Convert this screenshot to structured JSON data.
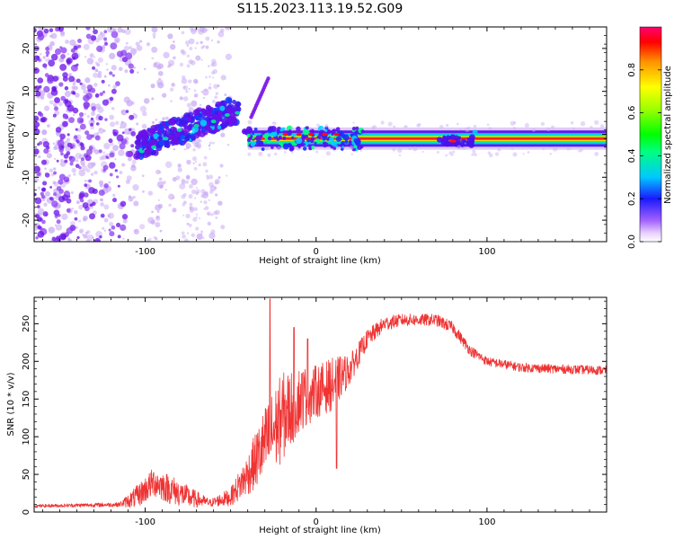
{
  "title": "S115.2023.113.19.52.G09",
  "chart_data": [
    {
      "type": "heatmap",
      "xlabel": "Height of straight line (km)",
      "ylabel": "Frequency (Hz)",
      "xlim": [
        -165,
        170
      ],
      "ylim": [
        -25,
        25
      ],
      "xticks": [
        -100,
        0,
        100
      ],
      "yticks": [
        -20,
        -10,
        0,
        10,
        20
      ],
      "colorbar": {
        "label": "Normalized spectral amplitude",
        "range": [
          0,
          1
        ],
        "ticks": [
          "0.0",
          "0.2",
          "0.4",
          "0.6",
          "0.8"
        ]
      },
      "description_features": {
        "noise_region_x": [
          -165,
          -60
        ],
        "rising_trend": {
          "x": [
            -105,
            -45
          ],
          "freq": [
            -3,
            6
          ]
        },
        "carrier_line_x": [
          -40,
          170
        ],
        "carrier_freq_hz": -1
      }
    },
    {
      "type": "line",
      "xlabel": "Height of straight line (km)",
      "ylabel": "SNR (10 * v/v)",
      "xlim": [
        -165,
        170
      ],
      "ylim": [
        0,
        285
      ],
      "xticks": [
        -100,
        0,
        100
      ],
      "yticks": [
        0,
        50,
        100,
        150,
        200,
        250
      ],
      "series": [
        {
          "name": "SNR",
          "color": "#ef3333",
          "profile_x": [
            -165,
            -115,
            -105,
            -95,
            -85,
            -75,
            -62,
            -50,
            -40,
            -30,
            -20,
            -10,
            0,
            10,
            20,
            30,
            40,
            50,
            60,
            70,
            80,
            90,
            100,
            120,
            140,
            170
          ],
          "profile_y": [
            8,
            10,
            20,
            40,
            30,
            20,
            12,
            20,
            50,
            90,
            125,
            150,
            160,
            170,
            190,
            230,
            250,
            255,
            255,
            255,
            245,
            215,
            200,
            192,
            190,
            188
          ],
          "noise_amp": [
            2,
            3,
            15,
            20,
            20,
            15,
            5,
            12,
            28,
            50,
            60,
            45,
            35,
            35,
            20,
            12,
            10,
            8,
            8,
            8,
            8,
            7,
            6,
            6,
            6,
            6
          ],
          "peaks": [
            [
              -27,
              283
            ],
            [
              -13,
              245
            ],
            [
              -5,
              230
            ],
            [
              12,
              58
            ]
          ]
        }
      ]
    }
  ]
}
